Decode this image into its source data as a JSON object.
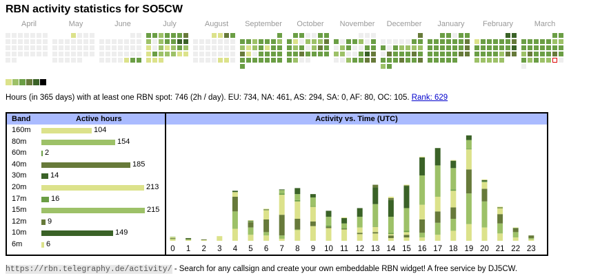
{
  "title": "RBN activity statistics for SO5CW",
  "colors": {
    "levels": [
      "#eeeeee",
      "#dce28b",
      "#9dc168",
      "#6b9e45",
      "#677a3a",
      "#3a6227",
      "#000000"
    ],
    "today_border": "#dd0000",
    "header_bg": "#aabbff"
  },
  "calendar": {
    "months": [
      {
        "label": "April",
        "rows": [
          "0000000",
          "0000000",
          "0000000",
          "0000000",
          "00-----",
          "-------"
        ]
      },
      {
        "label": "May",
        "rows": [
          "---1000",
          "0000000",
          "0000000",
          "0000000",
          "00000--",
          "-------"
        ]
      },
      {
        "label": "June",
        "rows": [
          "-----00",
          "0000000",
          "0000000",
          "0000000",
          "0000133",
          "-------"
        ]
      },
      {
        "label": "July",
        "rows": [
          "3323334",
          "2023355",
          "1021232",
          "1322211",
          "111----",
          "-------"
        ]
      },
      {
        "label": "August",
        "rows": [
          "---1143",
          "0000000",
          "0000000",
          "0000000",
          "0000110",
          "-------"
        ]
      },
      {
        "label": "September",
        "rows": [
          "------3",
          "3323332",
          "2123133",
          "4103333",
          "3333333",
          "3------"
        ]
      },
      {
        "label": "October",
        "rows": [
          "-330033",
          "3102224",
          "3230243",
          "3343333",
          "3200---",
          "-------"
        ]
      },
      {
        "label": "November",
        "rows": [
          "----000",
          "3033203",
          "0230033",
          "2200354",
          "0023344",
          "-------"
        ]
      },
      {
        "label": "December",
        "rows": [
          "------4",
          "0000033",
          "3032222",
          "0433343",
          "3334334",
          "23-----"
        ]
      },
      {
        "label": "January",
        "rows": [
          "--33033",
          "3333334",
          "3333334",
          "3333344",
          "33333--",
          "-------"
        ]
      },
      {
        "label": "February",
        "rows": [
          "-----55",
          "1333334",
          "3333335",
          "3333244",
          "22222--",
          "-------"
        ]
      },
      {
        "label": "March",
        "rows": [
          "-----33",
          "3333322",
          "3333333",
          "2433343",
          "32322T0",
          "0------"
        ]
      }
    ],
    "legend_levels": [
      1,
      2,
      3,
      4,
      5,
      6
    ]
  },
  "stats": {
    "text": "Hours (in 365 days) with at least one RBN spot: 746 (2h / day). EU: 734, NA: 461, AS: 294, SA: 0, AF: 80, OC: 105.",
    "rank_link": "Rank: 629"
  },
  "bands": {
    "header_band": "Band",
    "header_hours": "Active hours",
    "max": 215,
    "rows": [
      {
        "band": "160m",
        "hours": 104,
        "level": 1
      },
      {
        "band": "80m",
        "hours": 154,
        "level": 2
      },
      {
        "band": "60m",
        "hours": 2,
        "level": 3
      },
      {
        "band": "40m",
        "hours": 185,
        "level": 4
      },
      {
        "band": "30m",
        "hours": 14,
        "level": 5
      },
      {
        "band": "20m",
        "hours": 213,
        "level": 1
      },
      {
        "band": "17m",
        "hours": 16,
        "level": 3
      },
      {
        "band": "15m",
        "hours": 215,
        "level": 2
      },
      {
        "band": "12m",
        "hours": 9,
        "level": 4
      },
      {
        "band": "10m",
        "hours": 149,
        "level": 5
      },
      {
        "band": "6m",
        "hours": 6,
        "level": 1
      }
    ]
  },
  "chart_data": {
    "type": "bar",
    "title": "Activity vs. Time (UTC)",
    "stacked": true,
    "categories": [
      "0",
      "1",
      "2",
      "3",
      "4",
      "5",
      "6",
      "7",
      "8",
      "9",
      "10",
      "11",
      "12",
      "13",
      "14",
      "15",
      "16",
      "17",
      "18",
      "19",
      "20",
      "21",
      "22",
      "23"
    ],
    "series": [
      {
        "name": "160m",
        "level": 1,
        "values": [
          2,
          1,
          1,
          7,
          18,
          9,
          8,
          3,
          16,
          22,
          19,
          17,
          10,
          11,
          4,
          5,
          5,
          9,
          15,
          25,
          20,
          11,
          5,
          2
        ]
      },
      {
        "name": "80m",
        "level": 2,
        "values": [
          1,
          1,
          0,
          0,
          26,
          11,
          5,
          5,
          1,
          0,
          0,
          0,
          0,
          0,
          0,
          0,
          7,
          18,
          18,
          46,
          39,
          15,
          8,
          2
        ]
      },
      {
        "name": "40m",
        "level": 4,
        "values": [
          1,
          1,
          1,
          0,
          22,
          8,
          19,
          31,
          16,
          7,
          2,
          1,
          2,
          2,
          4,
          4,
          20,
          17,
          17,
          36,
          19,
          14,
          5,
          4
        ]
      },
      {
        "name": "20m",
        "level": 1,
        "values": [
          1,
          0,
          0,
          0,
          7,
          0,
          14,
          30,
          26,
          22,
          0,
          0,
          8,
          8,
          2,
          4,
          22,
          22,
          25,
          30,
          10,
          9,
          0,
          0
        ]
      },
      {
        "name": "17m",
        "level": 3,
        "values": [
          0,
          0,
          0,
          0,
          0,
          0,
          0,
          2,
          2,
          1,
          2,
          1,
          0,
          1,
          2,
          2,
          0,
          0,
          2,
          1,
          1,
          0,
          0,
          0
        ]
      },
      {
        "name": "15m",
        "level": 2,
        "values": [
          1,
          0,
          0,
          0,
          0,
          1,
          0,
          5,
          9,
          13,
          13,
          7,
          16,
          33,
          24,
          34,
          44,
          47,
          32,
          13,
          0,
          0,
          0,
          0
        ]
      },
      {
        "name": "10m",
        "level": 5,
        "values": [
          0,
          1,
          0,
          0,
          2,
          1,
          1,
          1,
          9,
          5,
          9,
          8,
          13,
          25,
          25,
          33,
          27,
          26,
          11,
          7,
          2,
          1,
          1,
          0
        ]
      },
      {
        "name": "12m",
        "level": 4,
        "values": [
          0,
          0,
          0,
          0,
          0,
          0,
          0,
          0,
          0,
          0,
          0,
          0,
          0,
          4,
          3,
          1,
          0,
          0,
          0,
          0,
          0,
          0,
          0,
          0
        ]
      },
      {
        "name": "6m",
        "level": 1,
        "values": [
          0,
          0,
          0,
          0,
          0,
          1,
          1,
          0,
          0,
          0,
          0,
          1,
          0,
          0,
          2,
          1,
          1,
          0,
          1,
          0,
          1,
          1,
          1,
          0
        ]
      }
    ],
    "ylim": [
      0,
      165
    ],
    "grid": false,
    "legend": "none"
  },
  "footer": {
    "url": "https://rbn.telegraphy.de/activity/",
    "text": " - Search for any callsign and create your own embeddable RBN widget! A free service by DJ5CW."
  }
}
